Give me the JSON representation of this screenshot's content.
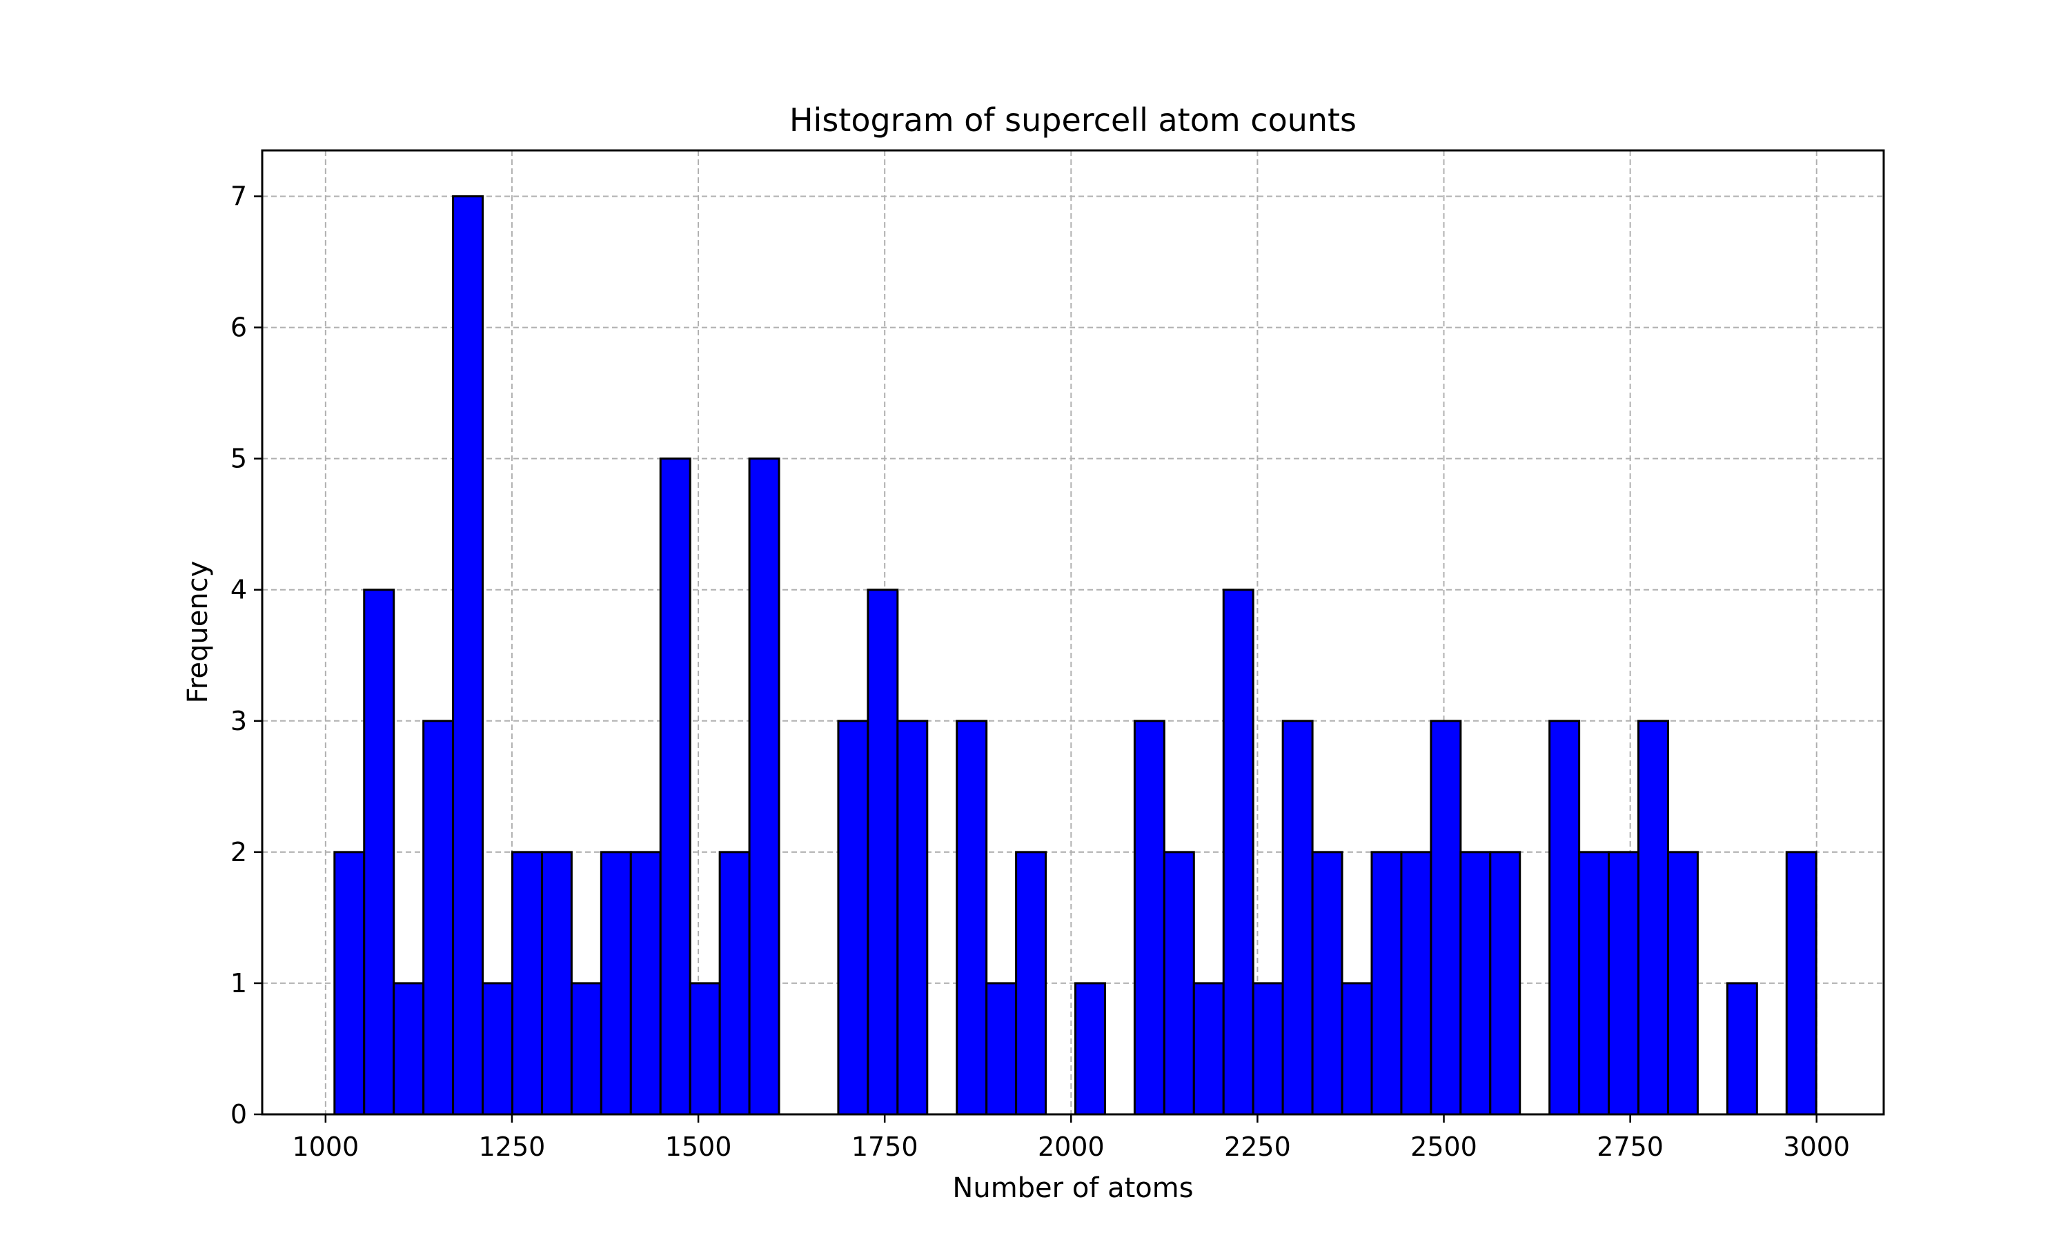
{
  "chart_data": {
    "type": "bar",
    "subtype": "histogram",
    "title": "Histogram of supercell atom counts",
    "xlabel": "Number of atoms",
    "ylabel": "Frequency",
    "xlim": [
      915,
      3090
    ],
    "ylim": [
      0,
      7.35
    ],
    "x_ticks": [
      1000,
      1250,
      1500,
      1750,
      2000,
      2250,
      2500,
      2750,
      3000
    ],
    "y_ticks": [
      0,
      1,
      2,
      3,
      4,
      5,
      6,
      7
    ],
    "grid": true,
    "bar_color": "#0000ff",
    "edge_color": "#000000",
    "grid_color": "#b0b0b0",
    "bin_start": 1012,
    "bin_width": 39.75,
    "counts": [
      2,
      4,
      1,
      3,
      7,
      1,
      2,
      2,
      1,
      2,
      2,
      5,
      1,
      2,
      5,
      0,
      0,
      3,
      4,
      3,
      0,
      3,
      1,
      2,
      0,
      1,
      0,
      3,
      2,
      1,
      4,
      1,
      3,
      2,
      1,
      2,
      2,
      3,
      2,
      2,
      0,
      3,
      2,
      2,
      3,
      2,
      0,
      1,
      0,
      2
    ]
  }
}
